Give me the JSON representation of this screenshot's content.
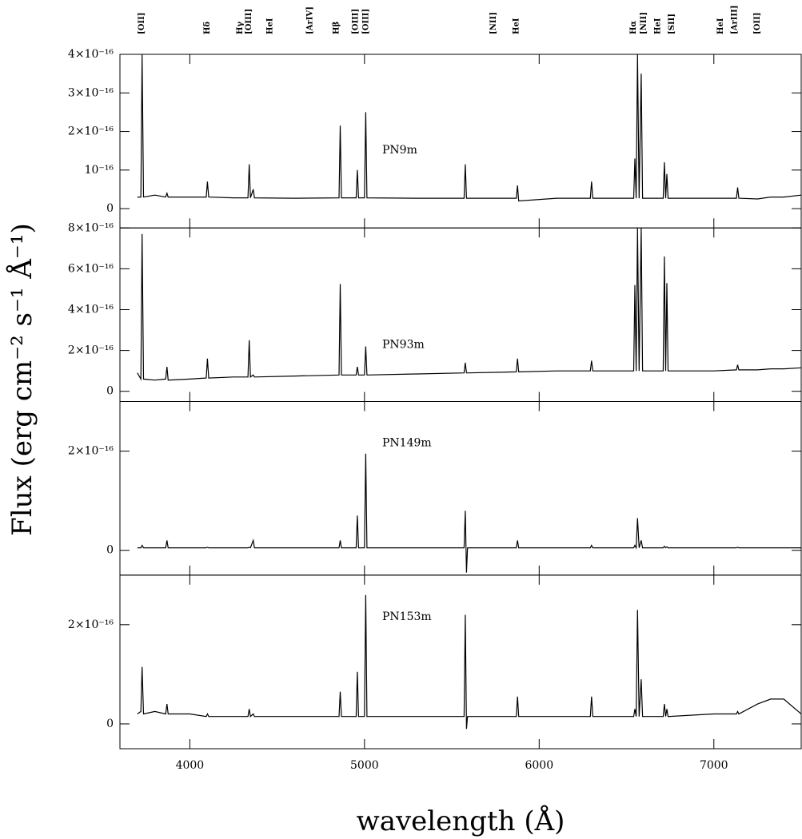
{
  "figure": {
    "y_label": "Flux (erg cm⁻² s⁻¹ Å⁻¹)",
    "x_label": "wavelength (Å)",
    "line_labels": [
      {
        "text": "[OII]",
        "x": 3727
      },
      {
        "text": "Hδ",
        "x": 4101
      },
      {
        "text": "Hγ",
        "x": 4290
      },
      {
        "text": "[OIII]",
        "x": 4340
      },
      {
        "text": "HeI",
        "x": 4460
      },
      {
        "text": "[ArIV]",
        "x": 4690
      },
      {
        "text": "Hβ",
        "x": 4840
      },
      {
        "text": "[OIII]",
        "x": 4950
      },
      {
        "text": "[OIII]",
        "x": 5010
      },
      {
        "text": "[NII]",
        "x": 5740
      },
      {
        "text": "HeI",
        "x": 5870
      },
      {
        "text": "Hα",
        "x": 6540
      },
      {
        "text": "[NII]",
        "x": 6600
      },
      {
        "text": "HeI",
        "x": 6680
      },
      {
        "text": "[SII]",
        "x": 6760
      },
      {
        "text": "HeI",
        "x": 7040
      },
      {
        "text": "[ArIII]",
        "x": 7120
      },
      {
        "text": "[OII]",
        "x": 7250
      }
    ]
  },
  "chart_data": [
    {
      "type": "line",
      "xlim": [
        3600,
        7500
      ],
      "xticks": [
        4000,
        5000,
        6000,
        7000
      ],
      "ylim": [
        -5e-17,
        4e-16
      ],
      "yticks": [
        0,
        {
          "value": 1e-16,
          "label": "10⁻¹⁶"
        },
        {
          "value": 2e-16,
          "label": "2×10⁻¹⁶"
        },
        {
          "value": 3e-16,
          "label": "3×10⁻¹⁶"
        },
        {
          "value": 4e-16,
          "label": "4×10⁻¹⁶"
        }
      ],
      "x": [
        3700,
        3720,
        3727,
        3735,
        3800,
        3862,
        3869,
        3876,
        4000,
        4094,
        4101,
        4108,
        4250,
        4333,
        4340,
        4347,
        4363,
        4370,
        4600,
        4854,
        4861,
        4868,
        4952,
        4959,
        4966,
        5000,
        5007,
        5014,
        5300,
        5570,
        5577,
        5584,
        5590,
        5869,
        5876,
        5883,
        6100,
        6293,
        6300,
        6307,
        6520,
        6541,
        6548,
        6555,
        6563,
        6572,
        6584,
        6592,
        6700,
        6710,
        6717,
        6724,
        6731,
        6738,
        7000,
        7129,
        7136,
        7143,
        7250,
        7325,
        7400,
        7500
      ],
      "series": [
        {
          "name": "PN9m",
          "color": "#000000",
          "values": [
            3e-17,
            3e-17,
            4e-16,
            3e-17,
            3.5e-17,
            3e-17,
            4e-17,
            3e-17,
            3e-17,
            3e-17,
            7e-17,
            3e-17,
            2.8e-17,
            2.8e-17,
            1.15e-16,
            2.8e-17,
            5e-17,
            2.8e-17,
            2.7e-17,
            2.8e-17,
            2.15e-16,
            2.8e-17,
            2.8e-17,
            1e-16,
            2.8e-17,
            2.8e-17,
            2.5e-16,
            2.8e-17,
            2.7e-17,
            2.7e-17,
            1.15e-16,
            2.7e-17,
            2.7e-17,
            2.7e-17,
            6e-17,
            2e-17,
            2.7e-17,
            2.7e-17,
            7e-17,
            2.7e-17,
            2.7e-17,
            2.7e-17,
            1.3e-16,
            2.7e-17,
            4e-16,
            2.7e-17,
            3.5e-16,
            2.7e-17,
            2.7e-17,
            2.7e-17,
            1.2e-16,
            2.7e-17,
            9e-17,
            2.7e-17,
            2.7e-17,
            2.7e-17,
            5.5e-17,
            2.7e-17,
            2.5e-17,
            3e-17,
            3e-17,
            3.5e-17
          ]
        }
      ]
    },
    {
      "type": "line",
      "xlim": [
        3600,
        7500
      ],
      "xticks": [
        4000,
        5000,
        6000,
        7000
      ],
      "ylim": [
        -5e-17,
        8e-16
      ],
      "yticks": [
        0,
        {
          "value": 2e-16,
          "label": "2×10⁻¹⁶"
        },
        {
          "value": 4e-16,
          "label": "4×10⁻¹⁶"
        },
        {
          "value": 6e-16,
          "label": "6×10⁻¹⁶"
        },
        {
          "value": 8e-16,
          "label": "8×10⁻¹⁶"
        }
      ],
      "x": [
        3700,
        3720,
        3727,
        3735,
        3800,
        3862,
        3869,
        3876,
        4000,
        4094,
        4101,
        4108,
        4250,
        4333,
        4340,
        4347,
        4363,
        4370,
        4600,
        4854,
        4861,
        4868,
        4952,
        4959,
        4966,
        5000,
        5007,
        5014,
        5300,
        5570,
        5577,
        5584,
        5590,
        5869,
        5876,
        5883,
        6100,
        6293,
        6300,
        6307,
        6520,
        6541,
        6548,
        6555,
        6563,
        6572,
        6584,
        6592,
        6700,
        6710,
        6717,
        6724,
        6731,
        6738,
        7000,
        7129,
        7136,
        7143,
        7250,
        7325,
        7400,
        7500
      ],
      "series": [
        {
          "name": "PN93m",
          "color": "#000000",
          "values": [
            9e-17,
            6e-17,
            7.7e-16,
            6e-17,
            5.5e-17,
            6e-17,
            1.2e-16,
            5.5e-17,
            6e-17,
            6.5e-17,
            1.6e-16,
            6.5e-17,
            7e-17,
            7e-17,
            2.5e-16,
            7e-17,
            8e-17,
            7e-17,
            7.5e-17,
            8e-17,
            5.25e-16,
            8e-17,
            8e-17,
            1.2e-16,
            8e-17,
            8e-17,
            2.2e-16,
            8e-17,
            8.5e-17,
            9e-17,
            1.4e-16,
            9e-17,
            9e-17,
            9.5e-17,
            1.6e-16,
            9.5e-17,
            1e-16,
            1e-16,
            1.5e-16,
            1e-16,
            1e-16,
            1e-16,
            5.2e-16,
            1e-16,
            8e-16,
            1e-16,
            8e-16,
            1e-16,
            1e-16,
            1e-16,
            6.6e-16,
            1e-16,
            5.3e-16,
            1e-16,
            1e-16,
            1.05e-16,
            1.3e-16,
            1.05e-16,
            1.05e-16,
            1.1e-16,
            1.1e-16,
            1.15e-16
          ]
        }
      ]
    },
    {
      "type": "line",
      "xlim": [
        3600,
        7500
      ],
      "xticks": [
        4000,
        5000,
        6000,
        7000
      ],
      "ylim": [
        -5e-17,
        3e-16
      ],
      "yticks": [
        0,
        {
          "value": 2e-16,
          "label": "2×10⁻¹⁶"
        }
      ],
      "x": [
        3700,
        3720,
        3727,
        3735,
        3800,
        3862,
        3869,
        3876,
        4000,
        4094,
        4101,
        4108,
        4250,
        4333,
        4340,
        4347,
        4363,
        4370,
        4600,
        4854,
        4861,
        4868,
        4952,
        4959,
        4966,
        5000,
        5007,
        5014,
        5300,
        5570,
        5577,
        5584,
        5590,
        5869,
        5876,
        5883,
        6100,
        6293,
        6300,
        6307,
        6520,
        6541,
        6548,
        6555,
        6563,
        6572,
        6584,
        6592,
        6700,
        6710,
        6717,
        6724,
        6731,
        6738,
        7000,
        7129,
        7136,
        7143,
        7250,
        7325,
        7400,
        7500
      ],
      "series": [
        {
          "name": "PN149m",
          "color": "#000000",
          "values": [
            5e-18,
            5e-18,
            1e-17,
            5e-18,
            5e-18,
            5e-18,
            2e-17,
            5e-18,
            5e-18,
            5e-18,
            6e-18,
            5e-18,
            5e-18,
            5e-18,
            6e-18,
            5e-18,
            2e-17,
            5e-18,
            5e-18,
            5e-18,
            2e-17,
            5e-18,
            5e-18,
            7e-17,
            5e-18,
            5e-18,
            1.95e-16,
            5e-18,
            5e-18,
            5e-18,
            8e-17,
            -4.5e-17,
            5e-18,
            5e-18,
            2e-17,
            5e-18,
            5e-18,
            5e-18,
            1e-17,
            5e-18,
            5e-18,
            5e-18,
            1e-17,
            5e-18,
            6.5e-17,
            5e-18,
            2e-17,
            5e-18,
            5e-18,
            5e-18,
            8e-18,
            5e-18,
            7e-18,
            5e-18,
            5e-18,
            5e-18,
            6e-18,
            5e-18,
            5e-18,
            5e-18,
            5e-18,
            5e-18
          ]
        }
      ]
    },
    {
      "type": "line",
      "xlim": [
        3600,
        7500
      ],
      "xticks": [
        4000,
        5000,
        6000,
        7000
      ],
      "ylim": [
        -5e-17,
        3e-16
      ],
      "yticks": [
        0,
        {
          "value": 2e-16,
          "label": "2×10⁻¹⁶"
        }
      ],
      "x": [
        3700,
        3720,
        3727,
        3735,
        3800,
        3862,
        3869,
        3876,
        4000,
        4094,
        4101,
        4108,
        4250,
        4333,
        4340,
        4347,
        4363,
        4370,
        4600,
        4854,
        4861,
        4868,
        4952,
        4959,
        4966,
        5000,
        5007,
        5014,
        5300,
        5570,
        5577,
        5584,
        5590,
        5869,
        5876,
        5883,
        6100,
        6293,
        6300,
        6307,
        6520,
        6541,
        6548,
        6555,
        6563,
        6572,
        6584,
        6592,
        6700,
        6710,
        6717,
        6724,
        6731,
        6738,
        7000,
        7129,
        7136,
        7143,
        7250,
        7325,
        7400,
        7500
      ],
      "series": [
        {
          "name": "PN153m",
          "color": "#000000",
          "values": [
            2e-17,
            2.5e-17,
            1.15e-16,
            2e-17,
            2.5e-17,
            2e-17,
            4e-17,
            2e-17,
            2e-17,
            1.5e-17,
            2e-17,
            1.5e-17,
            1.5e-17,
            1.5e-17,
            3e-17,
            1.5e-17,
            2e-17,
            1.5e-17,
            1.5e-17,
            1.5e-17,
            6.5e-17,
            1.5e-17,
            1.5e-17,
            1.05e-16,
            1.5e-17,
            1.5e-17,
            2.6e-16,
            1.5e-17,
            1.5e-17,
            1.5e-17,
            2.2e-16,
            -1e-17,
            1.5e-17,
            1.5e-17,
            5.5e-17,
            1.5e-17,
            1.5e-17,
            1.5e-17,
            5.5e-17,
            1.5e-17,
            1.5e-17,
            1.5e-17,
            3e-17,
            1.5e-17,
            2.3e-16,
            1.5e-17,
            9e-17,
            1.5e-17,
            1.5e-17,
            1.5e-17,
            4e-17,
            1.5e-17,
            3e-17,
            1.5e-17,
            2e-17,
            2e-17,
            2.5e-17,
            2e-17,
            4e-17,
            5e-17,
            5e-17,
            2e-17
          ]
        }
      ]
    }
  ]
}
